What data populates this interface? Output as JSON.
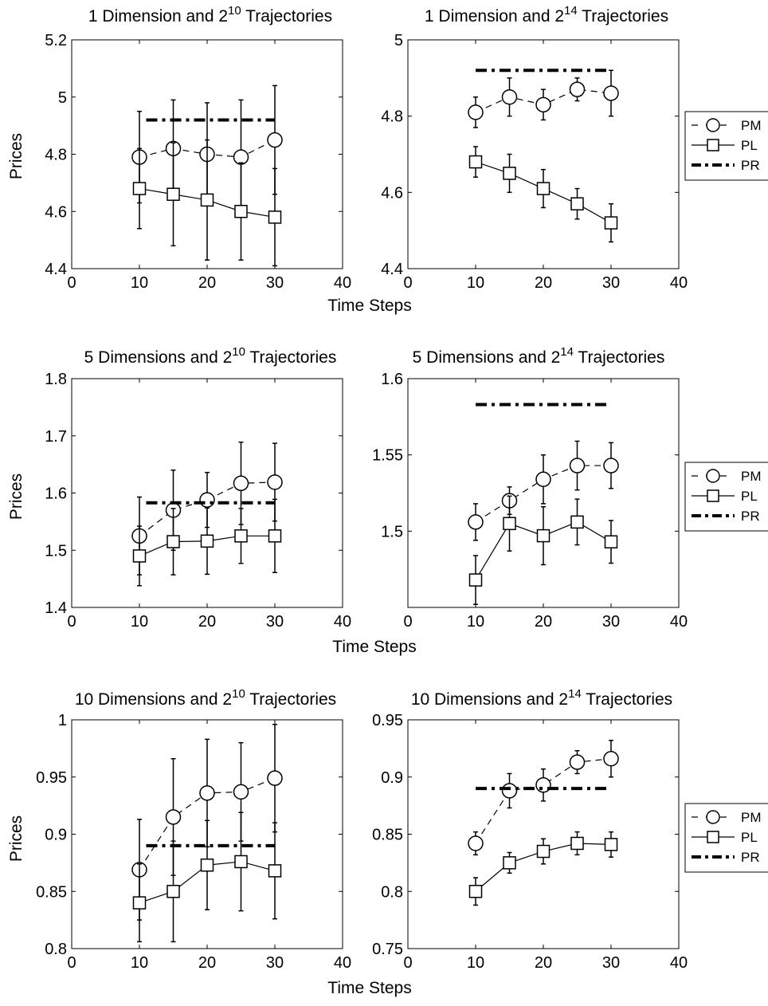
{
  "figure": {
    "ylabel": "Prices",
    "xlabel": "Time Steps",
    "legend_labels": [
      "PM",
      "PL",
      "PR"
    ]
  },
  "chart_data": [
    {
      "type": "line",
      "title": "1 Dimension and 2^10 Trajectories",
      "title_main": "1 Dimension and 2",
      "title_exp": "10",
      "title_tail": " Trajectories",
      "xlim": [
        0,
        40
      ],
      "ylim": [
        4.4,
        5.2
      ],
      "xticks": [
        0,
        10,
        20,
        30,
        40
      ],
      "yticks": [
        4.4,
        4.6,
        4.8,
        5,
        5.2
      ],
      "yticklabels": [
        "4.4",
        "4.6",
        "4.8",
        "5",
        "5.2"
      ],
      "ylabel": "Prices",
      "grid": false,
      "series": [
        {
          "name": "PM",
          "x": [
            10,
            15,
            20,
            25,
            30
          ],
          "y": [
            4.79,
            4.82,
            4.8,
            4.79,
            4.85
          ],
          "err": [
            0.16,
            0.17,
            0.18,
            0.2,
            0.19
          ]
        },
        {
          "name": "PL",
          "x": [
            10,
            15,
            20,
            25,
            30
          ],
          "y": [
            4.68,
            4.66,
            4.64,
            4.6,
            4.58
          ],
          "err": [
            0.14,
            0.18,
            0.21,
            0.17,
            0.17
          ]
        },
        {
          "name": "PR",
          "x": [
            11,
            30
          ],
          "y": [
            4.92,
            4.92
          ]
        }
      ]
    },
    {
      "type": "line",
      "title": "1 Dimension and 2^14 Trajectories",
      "title_main": "1 Dimension and 2",
      "title_exp": "14",
      "title_tail": " Trajectories",
      "xlim": [
        0,
        40
      ],
      "ylim": [
        4.4,
        5
      ],
      "xticks": [
        0,
        10,
        20,
        30,
        40
      ],
      "yticks": [
        4.4,
        4.6,
        4.8,
        5
      ],
      "yticklabels": [
        "4.4",
        "4.6",
        "4.8",
        "5"
      ],
      "xlabel": "Time Steps",
      "grid": false,
      "legend": "outside-right",
      "series": [
        {
          "name": "PM",
          "x": [
            10,
            15,
            20,
            25,
            30
          ],
          "y": [
            4.81,
            4.85,
            4.83,
            4.87,
            4.86
          ],
          "err": [
            0.04,
            0.05,
            0.04,
            0.03,
            0.06
          ]
        },
        {
          "name": "PL",
          "x": [
            10,
            15,
            20,
            25,
            30
          ],
          "y": [
            4.68,
            4.65,
            4.61,
            4.57,
            4.52
          ],
          "err": [
            0.04,
            0.05,
            0.05,
            0.04,
            0.05
          ]
        },
        {
          "name": "PR",
          "x": [
            10,
            30
          ],
          "y": [
            4.92,
            4.92
          ]
        }
      ]
    },
    {
      "type": "line",
      "title": "5 Dimensions and 2^10 Trajectories",
      "title_main": "5 Dimensions and 2",
      "title_exp": "10",
      "title_tail": " Trajectories",
      "xlim": [
        0,
        40
      ],
      "ylim": [
        1.4,
        1.8
      ],
      "xticks": [
        0,
        10,
        20,
        30,
        40
      ],
      "yticks": [
        1.4,
        1.5,
        1.6,
        1.7,
        1.8
      ],
      "yticklabels": [
        "1.4",
        "1.5",
        "1.6",
        "1.7",
        "1.8"
      ],
      "ylabel": "Prices",
      "grid": false,
      "series": [
        {
          "name": "PM",
          "x": [
            10,
            15,
            20,
            25,
            30
          ],
          "y": [
            1.525,
            1.57,
            1.588,
            1.617,
            1.619
          ],
          "err": [
            0.068,
            0.07,
            0.048,
            0.072,
            0.068
          ]
        },
        {
          "name": "PL",
          "x": [
            10,
            15,
            20,
            25,
            30
          ],
          "y": [
            1.49,
            1.515,
            1.516,
            1.525,
            1.525
          ],
          "err": [
            0.052,
            0.058,
            0.058,
            0.048,
            0.064
          ]
        },
        {
          "name": "PR",
          "x": [
            11,
            30
          ],
          "y": [
            1.583,
            1.583
          ]
        }
      ]
    },
    {
      "type": "line",
      "title": "5 Dimensions and 2^14 Trajectories",
      "title_main": "5 Dimensions and 2",
      "title_exp": "14",
      "title_tail": " Trajectories",
      "xlim": [
        0,
        40
      ],
      "ylim": [
        1.45,
        1.6
      ],
      "xticks": [
        0,
        10,
        20,
        30,
        40
      ],
      "yticks": [
        1.5,
        1.55,
        1.6
      ],
      "yticklabels": [
        "1.5",
        "1.55",
        "1.6"
      ],
      "xlabel": "Time Steps",
      "grid": false,
      "legend": "outside-right",
      "series": [
        {
          "name": "PM",
          "x": [
            10,
            15,
            20,
            25,
            30
          ],
          "y": [
            1.506,
            1.52,
            1.534,
            1.543,
            1.543
          ],
          "err": [
            0.012,
            0.009,
            0.016,
            0.016,
            0.015
          ]
        },
        {
          "name": "PL",
          "x": [
            10,
            15,
            20,
            25,
            30
          ],
          "y": [
            1.468,
            1.505,
            1.497,
            1.506,
            1.493
          ],
          "err": [
            0.016,
            0.018,
            0.019,
            0.015,
            0.014
          ]
        },
        {
          "name": "PR",
          "x": [
            10,
            30
          ],
          "y": [
            1.583,
            1.583
          ]
        }
      ]
    },
    {
      "type": "line",
      "title": "10 Dimensions and 2^10 Trajectories",
      "title_main": "10 Dimensions and 2",
      "title_exp": "10",
      "title_tail": " Trajectories",
      "xlim": [
        0,
        40
      ],
      "ylim": [
        0.8,
        1
      ],
      "xticks": [
        0,
        10,
        20,
        30,
        40
      ],
      "yticks": [
        0.8,
        0.85,
        0.9,
        0.95,
        1
      ],
      "yticklabels": [
        "0.8",
        "0.85",
        "0.9",
        "0.95",
        "1"
      ],
      "ylabel": "Prices",
      "grid": false,
      "series": [
        {
          "name": "PM",
          "x": [
            10,
            15,
            20,
            25,
            30
          ],
          "y": [
            0.869,
            0.915,
            0.936,
            0.937,
            0.949
          ],
          "err": [
            0.044,
            0.051,
            0.047,
            0.043,
            0.047
          ]
        },
        {
          "name": "PL",
          "x": [
            10,
            15,
            20,
            25,
            30
          ],
          "y": [
            0.84,
            0.85,
            0.873,
            0.876,
            0.868
          ],
          "err": [
            0.034,
            0.044,
            0.039,
            0.043,
            0.042
          ]
        },
        {
          "name": "PR",
          "x": [
            11,
            30
          ],
          "y": [
            0.89,
            0.89
          ]
        }
      ]
    },
    {
      "type": "line",
      "title": "10 Dimensions and 2^14 Trajectories",
      "title_main": "10 Dimensions and 2",
      "title_exp": "14",
      "title_tail": " Trajectories",
      "xlim": [
        0,
        40
      ],
      "ylim": [
        0.75,
        0.95
      ],
      "xticks": [
        0,
        10,
        20,
        30,
        40
      ],
      "yticks": [
        0.75,
        0.8,
        0.85,
        0.9,
        0.95
      ],
      "yticklabels": [
        "0.75",
        "0.8",
        "0.85",
        "0.9",
        "0.95"
      ],
      "xlabel": "Time Steps",
      "grid": false,
      "legend": "outside-right",
      "series": [
        {
          "name": "PM",
          "x": [
            10,
            15,
            20,
            25,
            30
          ],
          "y": [
            0.842,
            0.888,
            0.893,
            0.913,
            0.916
          ],
          "err": [
            0.01,
            0.015,
            0.014,
            0.01,
            0.016
          ]
        },
        {
          "name": "PL",
          "x": [
            10,
            15,
            20,
            25,
            30
          ],
          "y": [
            0.8,
            0.825,
            0.835,
            0.842,
            0.841
          ],
          "err": [
            0.012,
            0.009,
            0.011,
            0.01,
            0.011
          ]
        },
        {
          "name": "PR",
          "x": [
            10,
            30
          ],
          "y": [
            0.89,
            0.89
          ]
        }
      ]
    }
  ]
}
